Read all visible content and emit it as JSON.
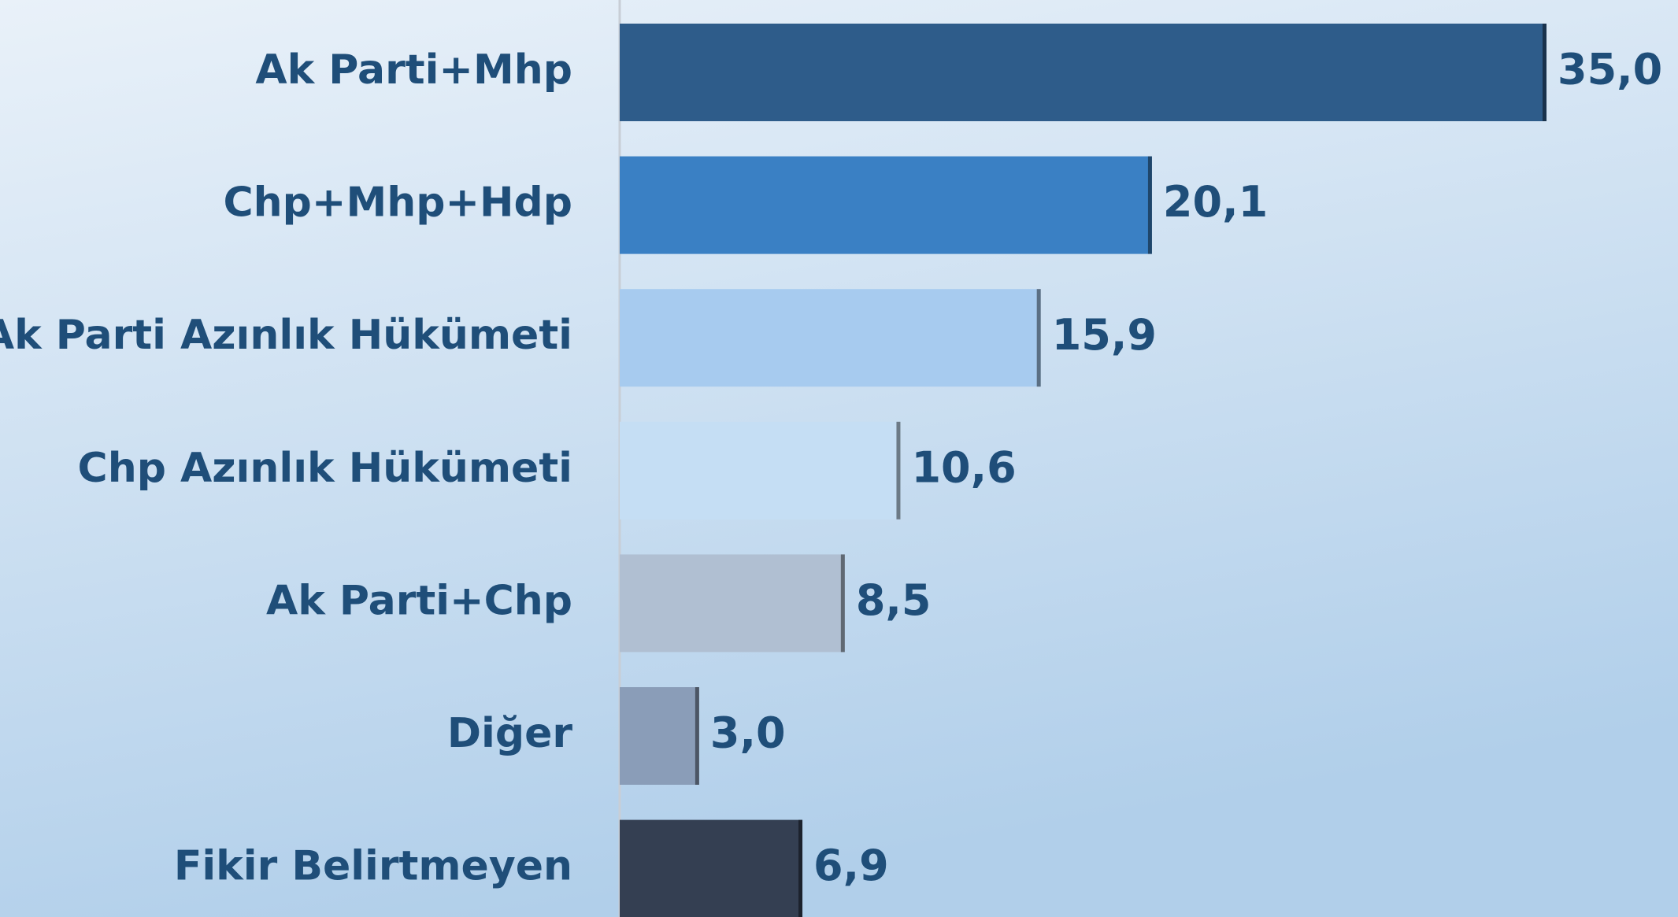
{
  "chart_data": {
    "type": "bar",
    "orientation": "horizontal",
    "categories": [
      "Ak Parti+Mhp",
      "Chp+Mhp+Hdp",
      "Ak Parti Azınlık Hükümeti",
      "Chp Azınlık Hükümeti",
      "Ak Parti+Chp",
      "Diğer",
      "Fikir Belirtmeyen"
    ],
    "values": [
      35.0,
      20.1,
      15.9,
      10.6,
      8.5,
      3.0,
      6.9
    ],
    "value_labels": [
      "35,0",
      "20,1",
      "15,9",
      "10,6",
      "8,5",
      "3,0",
      "6,9"
    ],
    "colors": [
      "#2e5c8a",
      "#3a80c4",
      "#a7cbef",
      "#c5def4",
      "#b0bfd2",
      "#8a9db8",
      "#343f52"
    ]
  }
}
